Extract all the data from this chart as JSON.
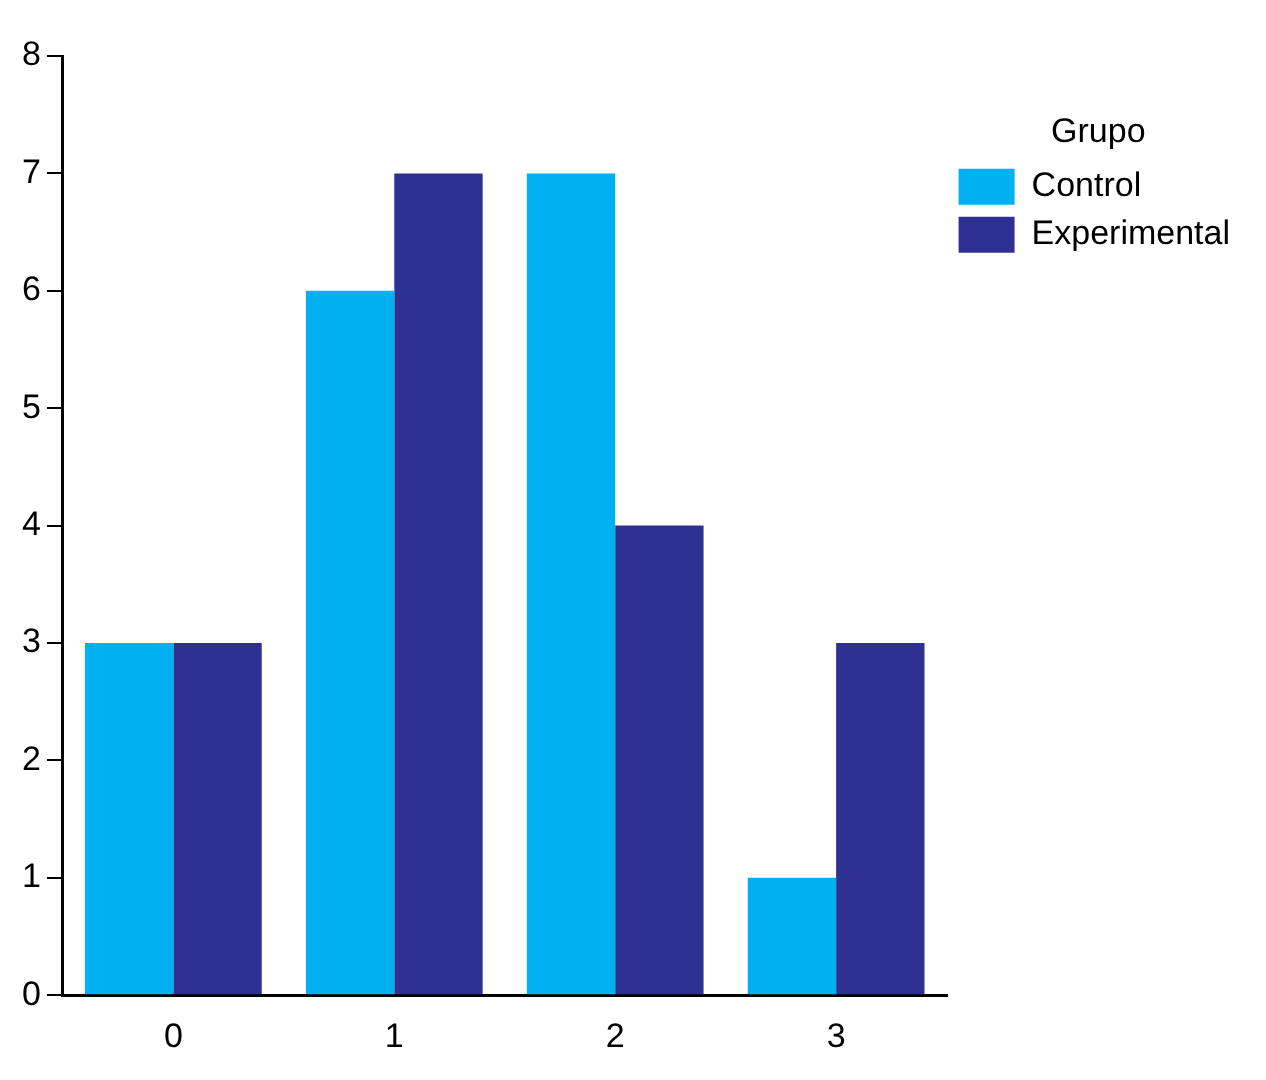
{
  "chart_data": {
    "type": "bar",
    "categories": [
      "0",
      "1",
      "2",
      "3"
    ],
    "series": [
      {
        "name": "Control",
        "color": "#00b0f0",
        "values": [
          3,
          6,
          7,
          1
        ]
      },
      {
        "name": "Experimental",
        "color": "#2e3192",
        "values": [
          3,
          7,
          4,
          3
        ]
      }
    ],
    "ylim": [
      0,
      8
    ],
    "yticks": [
      0,
      1,
      2,
      3,
      4,
      5,
      6,
      7,
      8
    ],
    "legend_title": "Grupo",
    "legend": "top right",
    "grid": false
  }
}
